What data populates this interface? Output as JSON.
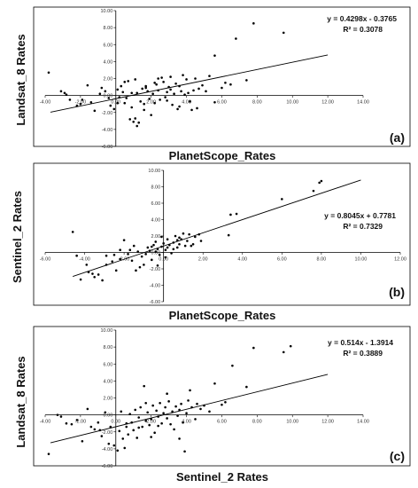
{
  "chart_data": [
    {
      "type": "scatter",
      "panel_label": "(a)",
      "xlabel": "PlanetScope_Rates",
      "ylabel": "Landsat_8 Rates",
      "xlim": [
        -4,
        14
      ],
      "ylim": [
        -6,
        10
      ],
      "xticks": [
        "-4.00",
        "-2.00",
        "0.00",
        "2.00",
        "4.00",
        "6.00",
        "8.00",
        "10.00",
        "12.00",
        "14.00"
      ],
      "yticks": [
        "10.00",
        "8.00",
        "6.00",
        "4.00",
        "2.00",
        "0.00",
        "-2.00",
        "-4.00",
        "-6.00"
      ],
      "equation": "y = 0.4298x - 0.3765",
      "r2": "R² = 0.3078",
      "trend": {
        "slope": 0.4298,
        "intercept": -0.3765,
        "x_range": [
          -3.7,
          12
        ]
      },
      "points": [
        [
          -3.8,
          2.7
        ],
        [
          -3.1,
          0.5
        ],
        [
          -2.9,
          0.3
        ],
        [
          -2.8,
          0.1
        ],
        [
          -2.6,
          -0.5
        ],
        [
          -2.2,
          -1.2
        ],
        [
          -2.0,
          -1.0
        ],
        [
          -1.6,
          1.2
        ],
        [
          -1.4,
          -0.8
        ],
        [
          -1.2,
          -1.8
        ],
        [
          -0.9,
          0.2
        ],
        [
          -0.6,
          0.5
        ],
        [
          -0.4,
          -0.3
        ],
        [
          -0.3,
          -1.2
        ],
        [
          -0.1,
          -1.6
        ],
        [
          0.1,
          0.7
        ],
        [
          0.2,
          -0.2
        ],
        [
          0.3,
          1.1
        ],
        [
          0.4,
          0.4
        ],
        [
          0.5,
          -0.9
        ],
        [
          0.6,
          -0.3
        ],
        [
          0.7,
          1.7
        ],
        [
          0.8,
          -2.8
        ],
        [
          0.9,
          0.3
        ],
        [
          1.0,
          -3.1
        ],
        [
          1.1,
          -2.7
        ],
        [
          1.2,
          -3.6
        ],
        [
          1.3,
          -3.2
        ],
        [
          1.4,
          -0.7
        ],
        [
          1.5,
          0.8
        ],
        [
          1.6,
          -1.0
        ],
        [
          1.7,
          1.1
        ],
        [
          1.8,
          0.5
        ],
        [
          1.9,
          -0.4
        ],
        [
          2.0,
          -2.3
        ],
        [
          2.1,
          0.2
        ],
        [
          2.2,
          -0.9
        ],
        [
          2.3,
          1.3
        ],
        [
          2.4,
          0.6
        ],
        [
          2.5,
          -0.5
        ],
        [
          2.6,
          2.1
        ],
        [
          2.7,
          1.6
        ],
        [
          2.8,
          -0.2
        ],
        [
          2.9,
          0.4
        ],
        [
          3.0,
          1.0
        ],
        [
          3.1,
          0.7
        ],
        [
          3.2,
          -1.1
        ],
        [
          3.3,
          0.2
        ],
        [
          3.4,
          1.4
        ],
        [
          3.5,
          -1.6
        ],
        [
          3.6,
          -1.3
        ],
        [
          3.7,
          0.5
        ],
        [
          3.8,
          2.4
        ],
        [
          3.9,
          0.1
        ],
        [
          4.0,
          1.9
        ],
        [
          4.1,
          0.3
        ],
        [
          4.2,
          -0.7
        ],
        [
          4.3,
          -1.7
        ],
        [
          4.5,
          2.0
        ],
        [
          4.6,
          -1.5
        ],
        [
          4.7,
          0.8
        ],
        [
          4.9,
          1.2
        ],
        [
          5.1,
          0.5
        ],
        [
          5.3,
          2.3
        ],
        [
          5.6,
          -0.8
        ],
        [
          6.0,
          0.9
        ],
        [
          6.2,
          1.5
        ],
        [
          6.5,
          1.3
        ],
        [
          6.8,
          6.7
        ],
        [
          7.4,
          1.8
        ],
        [
          7.8,
          8.5
        ],
        [
          9.5,
          7.4
        ],
        [
          2.4,
          2.0
        ],
        [
          1.1,
          1.9
        ],
        [
          0.1,
          -0.9
        ],
        [
          -0.8,
          0.9
        ],
        [
          3.1,
          2.2
        ],
        [
          4.4,
          0.6
        ],
        [
          2.9,
          -0.6
        ],
        [
          1.7,
          0.9
        ],
        [
          0.5,
          1.6
        ],
        [
          -1.9,
          -0.5
        ],
        [
          0.9,
          -1.4
        ],
        [
          1.6,
          -1.7
        ],
        [
          3.6,
          1.1
        ],
        [
          2.2,
          1.5
        ],
        [
          1.2,
          0.3
        ],
        [
          5.6,
          4.7
        ]
      ]
    },
    {
      "type": "scatter",
      "panel_label": "(b)",
      "xlabel": "PlanetScope_Rates",
      "ylabel": "Sentinel_2 Rates",
      "xlim": [
        -6,
        12
      ],
      "ylim": [
        -6,
        10
      ],
      "xticks": [
        "-6.00",
        "-4.00",
        "-2.00",
        "0.00",
        "2.00",
        "4.00",
        "6.00",
        "8.00",
        "10.00",
        "12.00"
      ],
      "yticks": [
        "10.00",
        "8.00",
        "6.00",
        "4.00",
        "2.00",
        "0.00",
        "-2.00",
        "-4.00",
        "-6.00"
      ],
      "equation": "y = 0.8045x + 0.7781",
      "r2": "R² = 0.7329",
      "trend": {
        "slope": 0.8045,
        "intercept": 0.7781,
        "x_range": [
          -4.6,
          10
        ]
      },
      "points": [
        [
          -4.6,
          2.5
        ],
        [
          -4.4,
          -0.4
        ],
        [
          -4.2,
          -3.3
        ],
        [
          -3.9,
          -1.5
        ],
        [
          -3.6,
          -2.6
        ],
        [
          -3.5,
          -3.0
        ],
        [
          -3.3,
          -2.7
        ],
        [
          -3.1,
          -3.4
        ],
        [
          -2.9,
          -0.4
        ],
        [
          -2.6,
          -1.1
        ],
        [
          -2.4,
          -2.2
        ],
        [
          -2.2,
          -0.8
        ],
        [
          -2.0,
          1.5
        ],
        [
          -1.8,
          -0.2
        ],
        [
          -1.6,
          -1.0
        ],
        [
          -1.5,
          0.8
        ],
        [
          -1.3,
          0.1
        ],
        [
          -1.1,
          -0.5
        ],
        [
          -1.0,
          -1.5
        ],
        [
          -0.8,
          0.6
        ],
        [
          -0.7,
          0.2
        ],
        [
          -0.6,
          -0.9
        ],
        [
          -0.5,
          0.9
        ],
        [
          -0.4,
          1.3
        ],
        [
          -0.3,
          0.4
        ],
        [
          -0.2,
          -0.3
        ],
        [
          -0.1,
          0.7
        ],
        [
          0.0,
          1.1
        ],
        [
          0.1,
          0.3
        ],
        [
          0.2,
          1.6
        ],
        [
          0.3,
          0.9
        ],
        [
          0.4,
          -0.1
        ],
        [
          0.5,
          1.2
        ],
        [
          0.6,
          2.0
        ],
        [
          0.7,
          0.6
        ],
        [
          0.8,
          1.0
        ],
        [
          0.9,
          1.6
        ],
        [
          1.0,
          2.3
        ],
        [
          1.1,
          0.8
        ],
        [
          1.2,
          1.4
        ],
        [
          1.3,
          2.2
        ],
        [
          1.5,
          1.0
        ],
        [
          1.6,
          1.9
        ],
        [
          1.8,
          2.2
        ],
        [
          -0.9,
          -0.2
        ],
        [
          -0.3,
          -1.6
        ],
        [
          0.5,
          0.4
        ],
        [
          -1.7,
          0.3
        ],
        [
          -2.5,
          -0.3
        ],
        [
          0.2,
          0.6
        ],
        [
          -1.2,
          -1.8
        ],
        [
          0.8,
          1.8
        ],
        [
          1.9,
          1.4
        ],
        [
          -0.6,
          0.7
        ],
        [
          0.1,
          -0.6
        ],
        [
          3.4,
          4.6
        ],
        [
          3.7,
          4.7
        ],
        [
          3.3,
          2.1
        ],
        [
          6.0,
          6.5
        ],
        [
          7.6,
          7.5
        ],
        [
          7.9,
          8.5
        ],
        [
          8.0,
          8.7
        ],
        [
          -2.9,
          -1.5
        ],
        [
          -1.4,
          -2.2
        ],
        [
          -0.1,
          1.9
        ],
        [
          0.7,
          1.5
        ],
        [
          1.4,
          0.8
        ],
        [
          -0.4,
          0.1
        ],
        [
          -3.8,
          -2.4
        ],
        [
          -2.2,
          0.3
        ]
      ]
    },
    {
      "type": "scatter",
      "panel_label": "(c)",
      "xlabel": "Sentinel_2 Rates",
      "ylabel": "Landsat_8 Rates",
      "xlim": [
        -4,
        14
      ],
      "ylim": [
        -6,
        10
      ],
      "xticks": [
        "-4.00",
        "-2.00",
        "0.00",
        "2.00",
        "4.00",
        "6.00",
        "8.00",
        "10.00",
        "12.00",
        "14.00"
      ],
      "yticks": [
        "10.00",
        "8.00",
        "6.00",
        "4.00",
        "2.00",
        "0.00",
        "-2.00",
        "-4.00",
        "-6.00"
      ],
      "equation": "y = 0.514x - 1.3914",
      "r2": "R² = 0.3889",
      "trend": {
        "slope": 0.514,
        "intercept": -1.3914,
        "x_range": [
          -3.7,
          12
        ]
      },
      "points": [
        [
          -3.8,
          -4.6
        ],
        [
          -3.3,
          0.0
        ],
        [
          -3.1,
          -0.2
        ],
        [
          -2.8,
          -1.0
        ],
        [
          -2.5,
          -1.1
        ],
        [
          -2.2,
          -0.6
        ],
        [
          -1.9,
          -3.1
        ],
        [
          -1.6,
          0.7
        ],
        [
          -1.4,
          -1.4
        ],
        [
          -1.2,
          -1.7
        ],
        [
          -1.0,
          -0.9
        ],
        [
          -0.8,
          -2.5
        ],
        [
          -0.6,
          0.3
        ],
        [
          -0.4,
          -3.4
        ],
        [
          -0.3,
          -1.4
        ],
        [
          -0.1,
          -3.6
        ],
        [
          0.1,
          -4.2
        ],
        [
          0.2,
          -1.9
        ],
        [
          0.3,
          0.4
        ],
        [
          0.4,
          -2.8
        ],
        [
          0.5,
          -3.9
        ],
        [
          0.6,
          -1.0
        ],
        [
          0.7,
          -2.3
        ],
        [
          0.8,
          0.1
        ],
        [
          0.9,
          -0.9
        ],
        [
          1.0,
          -1.8
        ],
        [
          1.1,
          0.6
        ],
        [
          1.2,
          -2.7
        ],
        [
          1.3,
          -0.3
        ],
        [
          1.4,
          0.9
        ],
        [
          1.5,
          -1.4
        ],
        [
          1.6,
          3.4
        ],
        [
          1.7,
          -0.7
        ],
        [
          1.8,
          0.3
        ],
        [
          1.9,
          -1.2
        ],
        [
          2.0,
          -0.5
        ],
        [
          2.1,
          1.1
        ],
        [
          2.2,
          -2.1
        ],
        [
          2.3,
          0.5
        ],
        [
          2.4,
          -0.2
        ],
        [
          2.5,
          1.4
        ],
        [
          2.6,
          -1.0
        ],
        [
          2.7,
          0.2
        ],
        [
          2.8,
          0.9
        ],
        [
          2.9,
          -0.4
        ],
        [
          3.0,
          1.6
        ],
        [
          3.1,
          -1.1
        ],
        [
          3.2,
          0.4
        ],
        [
          3.3,
          -1.7
        ],
        [
          3.4,
          1.0
        ],
        [
          3.5,
          -0.1
        ],
        [
          3.6,
          0.6
        ],
        [
          3.7,
          1.3
        ],
        [
          3.8,
          -0.9
        ],
        [
          3.9,
          -4.3
        ],
        [
          4.0,
          0.2
        ],
        [
          4.1,
          1.7
        ],
        [
          4.3,
          0.9
        ],
        [
          4.5,
          -0.5
        ],
        [
          4.6,
          1.3
        ],
        [
          4.8,
          0.7
        ],
        [
          5.0,
          1.1
        ],
        [
          5.3,
          0.4
        ],
        [
          5.6,
          3.7
        ],
        [
          6.0,
          1.2
        ],
        [
          6.2,
          1.5
        ],
        [
          6.6,
          5.8
        ],
        [
          7.4,
          3.3
        ],
        [
          7.8,
          7.9
        ],
        [
          9.5,
          7.4
        ],
        [
          9.9,
          8.1
        ],
        [
          2.0,
          -2.6
        ],
        [
          0.6,
          -1.4
        ],
        [
          2.9,
          2.5
        ],
        [
          1.3,
          -1.5
        ],
        [
          4.2,
          2.9
        ],
        [
          -0.9,
          -1.8
        ],
        [
          3.6,
          -2.8
        ],
        [
          2.4,
          -1.3
        ],
        [
          1.7,
          1.4
        ]
      ]
    }
  ]
}
